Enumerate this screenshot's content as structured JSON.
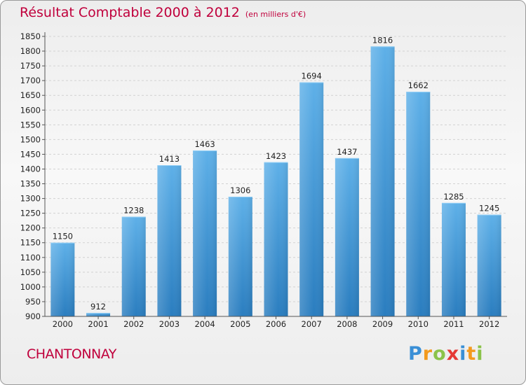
{
  "header": {
    "title": "Résultat Comptable 2000 à 2012",
    "subtitle": "(en milliers d'€)"
  },
  "footer": {
    "city": "CHANTONNAY",
    "logo": "Proxiti",
    "logo_letters": [
      {
        "ch": "P",
        "color": "#3a8fd6"
      },
      {
        "ch": "r",
        "color": "#f39a1e"
      },
      {
        "ch": "o",
        "color": "#8bc34a"
      },
      {
        "ch": "x",
        "color": "#e53935"
      },
      {
        "ch": "i",
        "color": "#3a8fd6"
      },
      {
        "ch": "t",
        "color": "#f39a1e"
      },
      {
        "ch": "i",
        "color": "#8bc34a"
      }
    ]
  },
  "colors": {
    "bar_top": "#5eb0e8",
    "bar_bottom": "#2a7dbf",
    "accent": "#c0003c"
  },
  "chart_data": {
    "type": "bar",
    "title": "Résultat Comptable 2000 à 2012",
    "xlabel": "",
    "ylabel": "(en milliers d'€)",
    "categories": [
      "2000",
      "2001",
      "2002",
      "2003",
      "2004",
      "2005",
      "2006",
      "2007",
      "2008",
      "2009",
      "2010",
      "2011",
      "2012"
    ],
    "values": [
      1150,
      912,
      1238,
      1413,
      1463,
      1306,
      1423,
      1694,
      1437,
      1816,
      1662,
      1285,
      1245
    ],
    "ylim": [
      900,
      1850
    ],
    "yticks": [
      900,
      950,
      1000,
      1050,
      1100,
      1150,
      1200,
      1250,
      1300,
      1350,
      1400,
      1450,
      1500,
      1550,
      1600,
      1650,
      1700,
      1750,
      1800,
      1850
    ],
    "grid": true
  }
}
